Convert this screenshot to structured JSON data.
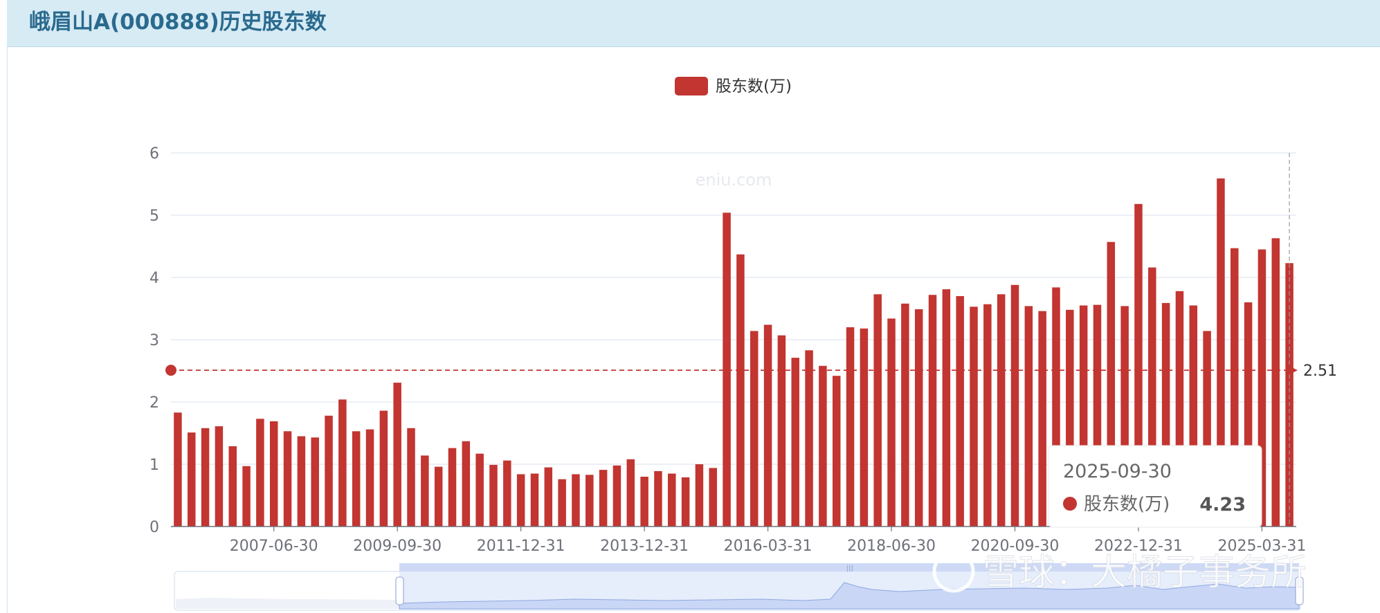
{
  "header": {
    "title": "峨眉山A(000888)历史股东数"
  },
  "watermark": "eniu.com",
  "footer_watermark": "雪球：大橘子事务所",
  "colors": {
    "bar": "#c23531",
    "grid": "#e0e6f1",
    "axis": "#6e7079",
    "header_bg": "#d7ebf5",
    "title": "#2a6a8e"
  },
  "tooltip": {
    "date": "2025-09-30",
    "series": "股东数(万)",
    "value": "4.23"
  },
  "mark_line": {
    "value": 2.51,
    "label": "2.51"
  },
  "chart_data": {
    "type": "bar",
    "legend": [
      "股东数(万)"
    ],
    "legend_position": "top-center",
    "ylim": [
      0,
      6
    ],
    "yticks": [
      "0",
      "1",
      "2",
      "3",
      "4",
      "5",
      "6"
    ],
    "xticks": [
      "2007-06-30",
      "2009-09-30",
      "2011-12-31",
      "2013-12-31",
      "2016-03-31",
      "2018-06-30",
      "2020-09-30",
      "2022-12-31",
      "2025-03-31"
    ],
    "grid": true,
    "series": [
      {
        "name": "股东数(万)",
        "values": [
          1.83,
          1.51,
          1.58,
          1.61,
          1.29,
          0.97,
          1.73,
          1.69,
          1.53,
          1.45,
          1.43,
          1.78,
          2.04,
          1.53,
          1.56,
          1.86,
          2.31,
          1.58,
          1.14,
          0.96,
          1.26,
          1.37,
          1.17,
          0.99,
          1.06,
          0.84,
          0.85,
          0.95,
          0.76,
          0.84,
          0.83,
          0.91,
          0.98,
          1.08,
          0.8,
          0.89,
          0.85,
          0.79,
          1.0,
          0.94,
          5.04,
          4.37,
          3.14,
          3.24,
          3.07,
          2.71,
          2.83,
          2.58,
          2.42,
          3.2,
          3.18,
          3.73,
          3.34,
          3.58,
          3.49,
          3.72,
          3.81,
          3.7,
          3.53,
          3.57,
          3.73,
          3.88,
          3.54,
          3.46,
          3.84,
          3.48,
          3.55,
          3.56,
          4.57,
          3.54,
          5.18,
          4.16,
          3.59,
          3.78,
          3.55,
          3.14,
          5.59,
          4.47,
          3.6,
          4.45,
          4.63,
          4.23
        ]
      }
    ]
  }
}
